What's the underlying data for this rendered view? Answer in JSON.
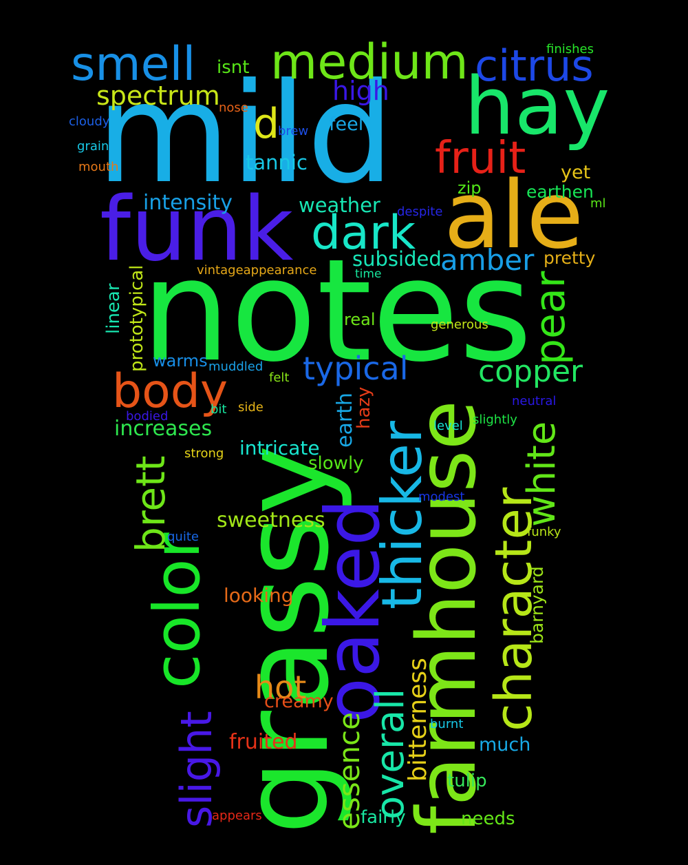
{
  "words": [
    {
      "text": "mild",
      "color": "#18aee6"
    },
    {
      "text": "notes",
      "color": "#17e640"
    },
    {
      "text": "grassy",
      "color": "#1be62c"
    },
    {
      "text": "funk",
      "color": "#4a1ee6"
    },
    {
      "text": "ale",
      "color": "#e6ae18"
    },
    {
      "text": "hay",
      "color": "#18e66a"
    },
    {
      "text": "medium",
      "color": "#6ee618"
    },
    {
      "text": "smell",
      "color": "#1890e6"
    },
    {
      "text": "citrus",
      "color": "#1d48e6"
    },
    {
      "text": "farmhouse",
      "color": "#7de618"
    },
    {
      "text": "oaked",
      "color": "#3b18e6"
    },
    {
      "text": "color",
      "color": "#18e628"
    },
    {
      "text": "thicker",
      "color": "#18b8e6"
    },
    {
      "text": "character",
      "color": "#b6e618"
    },
    {
      "text": "fruit",
      "color": "#e62118"
    },
    {
      "text": "dark",
      "color": "#18e6c8"
    },
    {
      "text": "body",
      "color": "#e65418"
    },
    {
      "text": "overall",
      "color": "#18e6a8"
    },
    {
      "text": "slight",
      "color": "#4818e6"
    },
    {
      "text": "pear",
      "color": "#34e618"
    },
    {
      "text": "white",
      "color": "#62e618"
    },
    {
      "text": "typical",
      "color": "#1a68e6"
    },
    {
      "text": "copper",
      "color": "#22e662"
    },
    {
      "text": "brett",
      "color": "#6ee618"
    },
    {
      "text": "amber",
      "color": "#189ee6"
    },
    {
      "text": "spectrum",
      "color": "#c8e618"
    },
    {
      "text": "high",
      "color": "#3a18e6"
    },
    {
      "text": "d",
      "color": "#dee618"
    },
    {
      "text": "hot",
      "color": "#e68a18"
    },
    {
      "text": "essence",
      "color": "#7ae618"
    },
    {
      "text": "bitterness",
      "color": "#e6d018"
    },
    {
      "text": "intensity",
      "color": "#18a0e6"
    },
    {
      "text": "weather",
      "color": "#18e6b4"
    },
    {
      "text": "tannic",
      "color": "#18c8e6"
    },
    {
      "text": "subsided",
      "color": "#18e6b8"
    },
    {
      "text": "increases",
      "color": "#2ee64e"
    },
    {
      "text": "sweetness",
      "color": "#a2e618"
    },
    {
      "text": "intricate",
      "color": "#18e6d0"
    },
    {
      "text": "earth",
      "color": "#18a8e6"
    },
    {
      "text": "creamy",
      "color": "#e64e18"
    },
    {
      "text": "fruited",
      "color": "#e63218"
    },
    {
      "text": "looking",
      "color": "#e66a18"
    },
    {
      "text": "feel",
      "color": "#18a8e6"
    },
    {
      "text": "isnt",
      "color": "#58e618"
    },
    {
      "text": "yet",
      "color": "#e6c418"
    },
    {
      "text": "zip",
      "color": "#52e618"
    },
    {
      "text": "earthen",
      "color": "#18e656"
    },
    {
      "text": "pretty",
      "color": "#e6b018"
    },
    {
      "text": "prototypical",
      "color": "#c0e618"
    },
    {
      "text": "linear",
      "color": "#18e6b0"
    },
    {
      "text": "warms",
      "color": "#188ee6"
    },
    {
      "text": "real",
      "color": "#6ee618"
    },
    {
      "text": "slowly",
      "color": "#56e618"
    },
    {
      "text": "much",
      "color": "#18aae6"
    },
    {
      "text": "tulip",
      "color": "#36e65a"
    },
    {
      "text": "fairly",
      "color": "#18e6a0"
    },
    {
      "text": "needs",
      "color": "#64e618"
    },
    {
      "text": "hazy",
      "color": "#e63c18"
    },
    {
      "text": "barnyard",
      "color": "#9ee618"
    },
    {
      "text": "vintageappearance",
      "color": "#e6a818"
    },
    {
      "text": "finishes",
      "color": "#28e62a"
    },
    {
      "text": "nose",
      "color": "#e66218"
    },
    {
      "text": "brew",
      "color": "#1c4ee6"
    },
    {
      "text": "cloudy",
      "color": "#1c60e6"
    },
    {
      "text": "grain",
      "color": "#18c8e6"
    },
    {
      "text": "mouth",
      "color": "#e67818"
    },
    {
      "text": "despite",
      "color": "#2626e6"
    },
    {
      "text": "ml",
      "color": "#5ae618"
    },
    {
      "text": "time",
      "color": "#18e69e"
    },
    {
      "text": "generous",
      "color": "#c4e618"
    },
    {
      "text": "muddled",
      "color": "#1aa0e6"
    },
    {
      "text": "felt",
      "color": "#8ae618"
    },
    {
      "text": "neutral",
      "color": "#2a18e6"
    },
    {
      "text": "slightly",
      "color": "#1ee646"
    },
    {
      "text": "level",
      "color": "#18e6d6"
    },
    {
      "text": "bodied",
      "color": "#3a18e6"
    },
    {
      "text": "bit",
      "color": "#18e6a0"
    },
    {
      "text": "side",
      "color": "#e6b418"
    },
    {
      "text": "strong",
      "color": "#e6d418"
    },
    {
      "text": "modest",
      "color": "#1836e6"
    },
    {
      "text": "quite",
      "color": "#1868e6"
    },
    {
      "text": "funky",
      "color": "#b8e618"
    },
    {
      "text": "burnt",
      "color": "#18c8e6"
    },
    {
      "text": "appears",
      "color": "#e62818"
    }
  ]
}
